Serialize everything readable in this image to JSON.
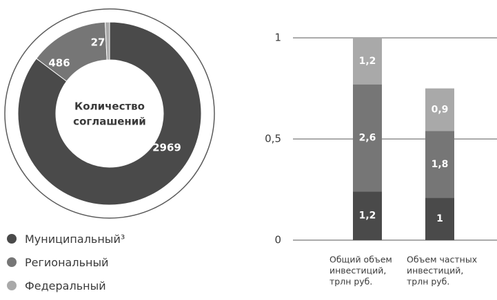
{
  "chart_data": [
    {
      "type": "pie",
      "variant": "donut",
      "center_label": [
        "Количество",
        "соглашений"
      ],
      "slices": [
        {
          "name": "Муниципальный³",
          "value": 2969,
          "label": "2969",
          "color": "#4a4a4a"
        },
        {
          "name": "Региональный",
          "value": 486,
          "label": "486",
          "color": "#767676"
        },
        {
          "name": "Федеральный",
          "value": 27,
          "label": "27",
          "color": "#a9a9a9"
        }
      ],
      "legend_position": "bottom-left"
    },
    {
      "type": "bar",
      "stacked": true,
      "categories": [
        [
          "Общий объем",
          "инвестиций,",
          "трлн руб."
        ],
        [
          "Объем частных",
          "инвестиций,",
          "трлн руб."
        ]
      ],
      "series": [
        {
          "name": "Муниципальный³",
          "values": [
            0.24,
            0.21
          ],
          "labels": [
            "1,2",
            "1"
          ],
          "color": "#4a4a4a"
        },
        {
          "name": "Региональный",
          "values": [
            0.53,
            0.33
          ],
          "labels": [
            "2,6",
            "1,8"
          ],
          "color": "#767676"
        },
        {
          "name": "Федеральный",
          "values": [
            0.23,
            0.21
          ],
          "labels": [
            "1,2",
            "0,9"
          ],
          "color": "#a9a9a9"
        }
      ],
      "ylim": [
        0,
        1
      ],
      "yticks": [
        0,
        0.5,
        1
      ],
      "ytick_labels": [
        "0",
        "0,5",
        "1"
      ],
      "grid": true
    }
  ]
}
